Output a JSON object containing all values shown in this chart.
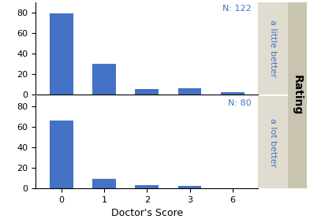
{
  "top_panel": {
    "label": "a little better",
    "N": "N: 122",
    "categories": [
      0,
      1,
      2,
      3,
      6
    ],
    "values": [
      79,
      30,
      5,
      6,
      2
    ],
    "ylim": [
      0,
      90
    ],
    "yticks": [
      0,
      20,
      40,
      60,
      80
    ]
  },
  "bottom_panel": {
    "label": "a lot better",
    "N": "N: 80",
    "categories": [
      0,
      1,
      2,
      3,
      6
    ],
    "values": [
      66,
      9,
      3,
      2,
      0
    ],
    "ylim": [
      0,
      90
    ],
    "yticks": [
      0,
      20,
      40,
      60,
      80
    ]
  },
  "bar_color": "#4472c4",
  "bar_width": 0.55,
  "xlabel": "Doctor's Score",
  "right_label": "Rating",
  "right_label_bg": "#c8c4b0",
  "subplot_label_bg": "#e0ddd0",
  "n_color": "#4472c4",
  "text_color": "#4472c4",
  "axis_fontsize": 8,
  "tick_fontsize": 8,
  "rating_fontsize": 10,
  "label_fontsize": 8
}
